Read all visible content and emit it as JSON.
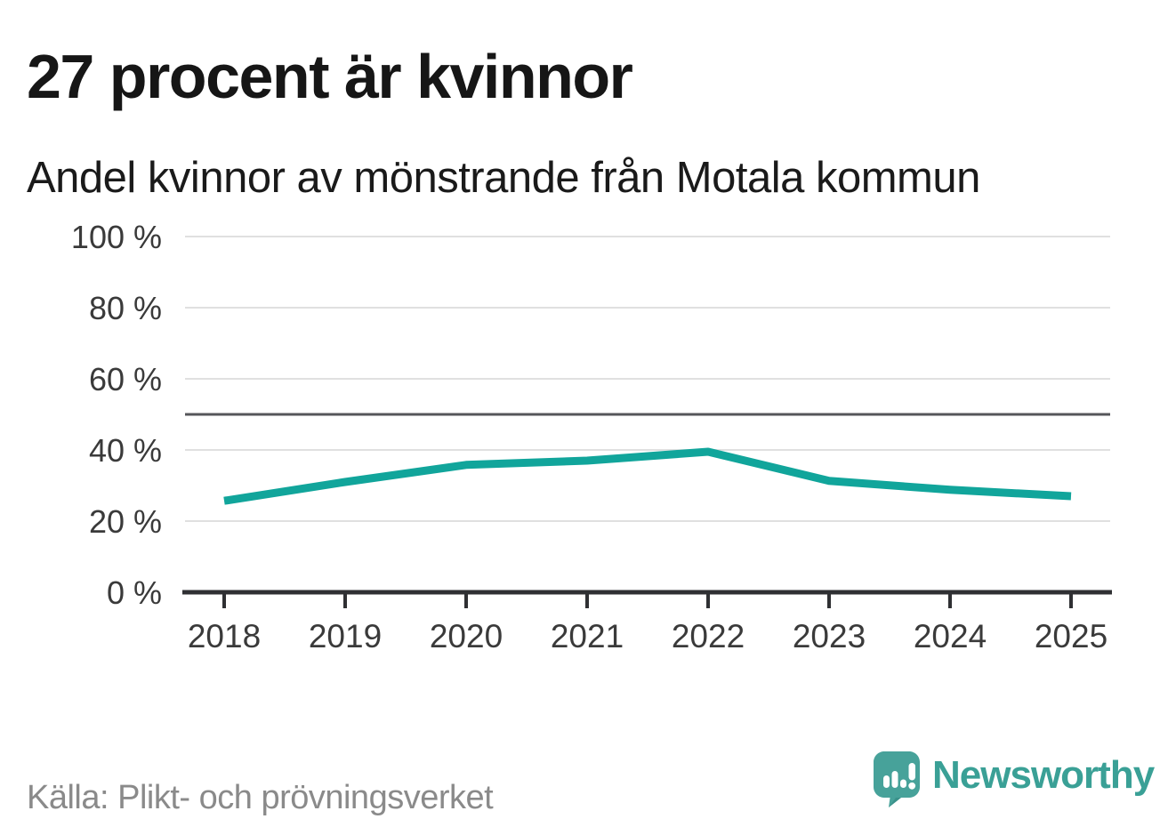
{
  "header": {
    "title": "27 procent är kvinnor",
    "subtitle": "Andel kvinnor av mönstrande från Motala kommun"
  },
  "chart_data": {
    "type": "line",
    "title": "Andel kvinnor av mönstrande från Motala kommun",
    "x": [
      "2018",
      "2019",
      "2020",
      "2021",
      "2022",
      "2023",
      "2024",
      "2025"
    ],
    "series": [
      {
        "name": "Andel kvinnor av mönstrande",
        "values": [
          25.7,
          31.0,
          35.8,
          37.0,
          39.5,
          31.3,
          28.8,
          27.0
        ]
      }
    ],
    "xlabel": "",
    "ylabel": "",
    "ylim": [
      0,
      100
    ],
    "yticks": [
      0,
      20,
      40,
      60,
      80,
      100
    ],
    "ytick_labels": [
      "0 %",
      "20 %",
      "40 %",
      "60 %",
      "80 %",
      "100 %"
    ],
    "reference_line": 50,
    "grid": true,
    "legend": "none",
    "line_color": "#11a59b"
  },
  "footer": {
    "source": "Källa: Plikt- och prövningsverket",
    "brand": "Newsworthy"
  },
  "colors": {
    "line": "#11a59b",
    "title_text": "#161616",
    "tick_text": "#3a3a3a",
    "gridline": "#e0e0e0",
    "reference_line": "#55565a",
    "axis": "#2f3033",
    "source_text": "#8a8a8a",
    "brand_teal": "#3aa096",
    "logo_teal": "#47a29a",
    "logo_tail_shade": "#2f847d",
    "background": "#ffffff"
  }
}
